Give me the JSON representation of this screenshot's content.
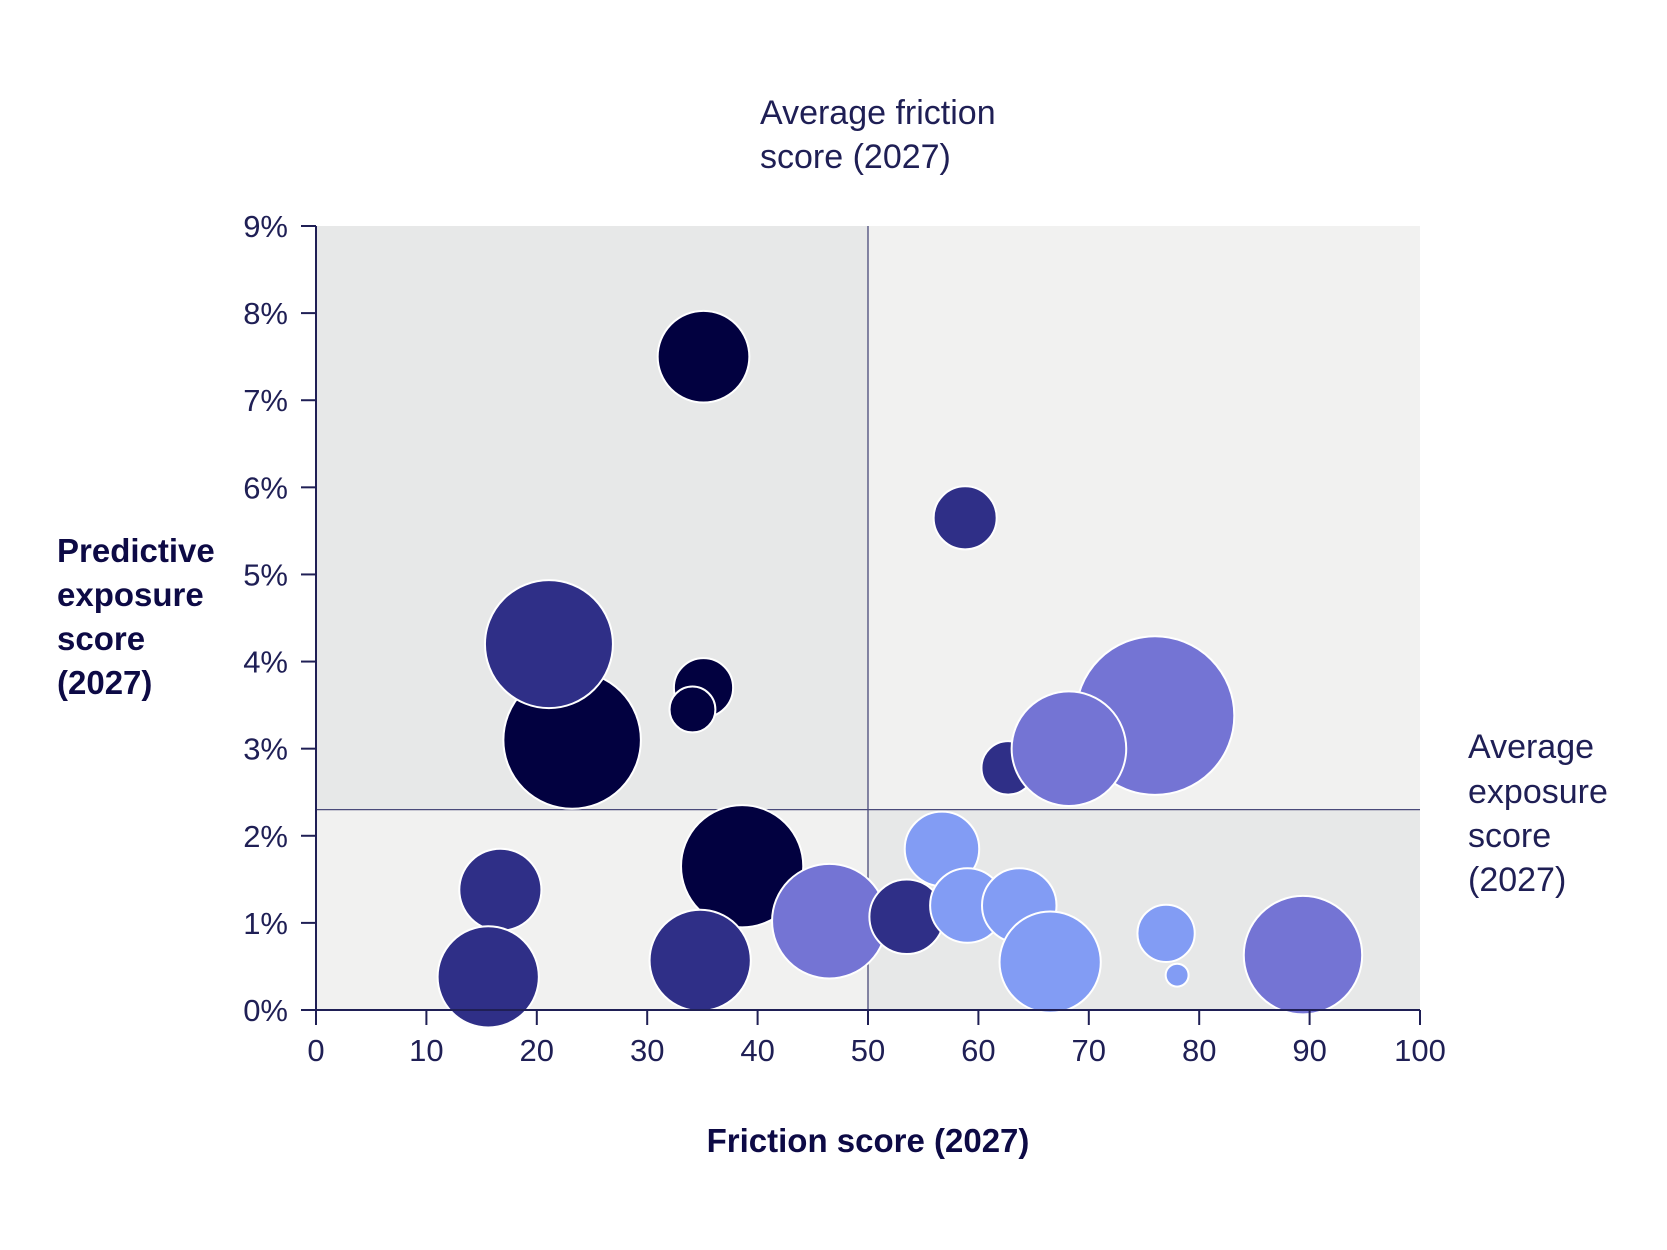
{
  "colors": {
    "quadrant_dark": "#e7e8e8",
    "quadrant_light": "#f1f1f0",
    "axis": "#1f1f55",
    "reference_line": "#4a4a7a",
    "navy": "#020140",
    "indigo": "#2f2f87",
    "violet": "#7474d4",
    "periwinkle": "#829cf4",
    "bubble_stroke": "#ffffff"
  },
  "chart_data": {
    "type": "scatter",
    "subtype": "bubble",
    "title": "",
    "xlabel": "Friction score (2027)",
    "ylabel_lines": [
      "Predictive",
      "exposure",
      "score",
      "(2027)"
    ],
    "xlim": [
      0,
      100
    ],
    "ylim": [
      0,
      9
    ],
    "x_ticks": [
      "0",
      "10",
      "20",
      "30",
      "40",
      "50",
      "60",
      "70",
      "80",
      "90",
      "100"
    ],
    "y_ticks": [
      "0%",
      "1%",
      "2%",
      "3%",
      "4%",
      "5%",
      "6%",
      "7%",
      "8%",
      "9%"
    ],
    "grid": false,
    "reference_lines": {
      "average_friction": {
        "x": 50,
        "label_lines": [
          "Average friction",
          "score (2027)"
        ]
      },
      "average_exposure": {
        "y": 2.3,
        "label_lines": [
          "Average",
          "exposure",
          "score",
          "(2027)"
        ]
      }
    },
    "points": [
      {
        "x": 23.2,
        "y": 3.1,
        "size": 7.2,
        "color": "navy"
      },
      {
        "x": 21.1,
        "y": 4.2,
        "size": 6.7,
        "color": "indigo"
      },
      {
        "x": 35.1,
        "y": 7.5,
        "size": 4.8,
        "color": "navy"
      },
      {
        "x": 35.1,
        "y": 3.7,
        "size": 3.1,
        "color": "navy"
      },
      {
        "x": 34.1,
        "y": 3.45,
        "size": 2.4,
        "color": "navy"
      },
      {
        "x": 38.6,
        "y": 1.65,
        "size": 6.4,
        "color": "navy"
      },
      {
        "x": 16.7,
        "y": 1.38,
        "size": 4.3,
        "color": "indigo"
      },
      {
        "x": 15.6,
        "y": 0.38,
        "size": 5.3,
        "color": "indigo"
      },
      {
        "x": 34.8,
        "y": 0.57,
        "size": 5.3,
        "color": "indigo"
      },
      {
        "x": 46.5,
        "y": 1.02,
        "size": 6.0,
        "color": "violet"
      },
      {
        "x": 58.8,
        "y": 5.65,
        "size": 3.3,
        "color": "indigo"
      },
      {
        "x": 62.7,
        "y": 2.78,
        "size": 2.8,
        "color": "indigo"
      },
      {
        "x": 76.0,
        "y": 3.38,
        "size": 8.3,
        "color": "violet"
      },
      {
        "x": 68.2,
        "y": 3.0,
        "size": 6.0,
        "color": "violet"
      },
      {
        "x": 56.7,
        "y": 1.85,
        "size": 3.9,
        "color": "periwinkle"
      },
      {
        "x": 53.5,
        "y": 1.07,
        "size": 3.9,
        "color": "indigo"
      },
      {
        "x": 59.0,
        "y": 1.2,
        "size": 3.9,
        "color": "periwinkle"
      },
      {
        "x": 63.7,
        "y": 1.2,
        "size": 3.9,
        "color": "periwinkle"
      },
      {
        "x": 66.5,
        "y": 0.55,
        "size": 5.3,
        "color": "periwinkle"
      },
      {
        "x": 77.0,
        "y": 0.88,
        "size": 3.0,
        "color": "periwinkle"
      },
      {
        "x": 78.0,
        "y": 0.4,
        "size": 1.2,
        "color": "periwinkle"
      },
      {
        "x": 89.4,
        "y": 0.63,
        "size": 6.2,
        "color": "violet"
      }
    ]
  }
}
